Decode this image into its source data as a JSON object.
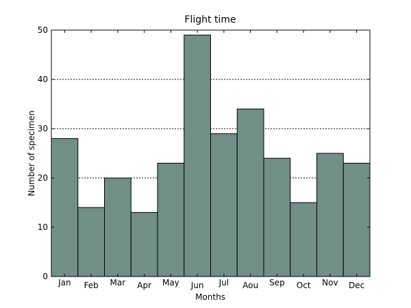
{
  "chart_data": {
    "type": "bar",
    "title": "Flight time",
    "xlabel": "Months",
    "ylabel": "Number of specimen",
    "categories": [
      "Jan",
      "Feb",
      "Mar",
      "Apr",
      "May",
      "Jun",
      "Jul",
      "Aou",
      "Sep",
      "Oct",
      "Nov",
      "Dec"
    ],
    "values": [
      28,
      14,
      20,
      13,
      23,
      49,
      29,
      34,
      24,
      15,
      25,
      23
    ],
    "ylim": [
      0,
      50
    ],
    "yticks": [
      0,
      10,
      20,
      30,
      40,
      50
    ],
    "grid": true,
    "bar_color": "#718e87"
  }
}
